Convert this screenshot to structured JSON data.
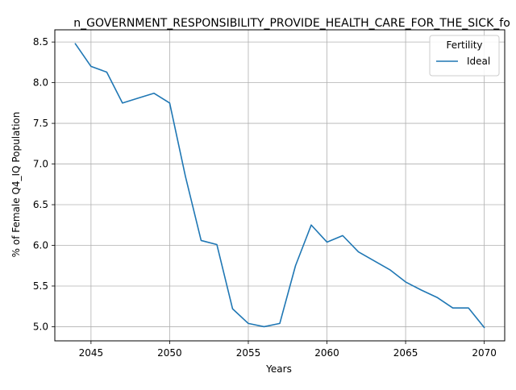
{
  "chart_data": {
    "type": "line",
    "title": "n_GOVERNMENT_RESPONSIBILITY_PROVIDE_HEALTH_CARE_FOR_THE_SICK_fo",
    "xlabel": "Years",
    "ylabel": "% of Female Q4_IQ Population",
    "xlim": [
      2042.7,
      2071.3
    ],
    "ylim": [
      4.826,
      8.65
    ],
    "xticks": [
      2045,
      2050,
      2055,
      2060,
      2065,
      2070
    ],
    "yticks": [
      5.0,
      5.5,
      6.0,
      6.5,
      7.0,
      7.5,
      8.0,
      8.5
    ],
    "xtick_labels": [
      "2045",
      "2050",
      "2055",
      "2060",
      "2065",
      "2070"
    ],
    "ytick_labels": [
      "5.0",
      "5.5",
      "6.0",
      "6.5",
      "7.0",
      "7.5",
      "8.0",
      "8.5"
    ],
    "grid": true,
    "legend": {
      "title": "Fertility",
      "placement": "top-right"
    },
    "x": [
      2044,
      2045,
      2046,
      2047,
      2048,
      2049,
      2050,
      2051,
      2052,
      2053,
      2054,
      2055,
      2056,
      2057,
      2058,
      2059,
      2060,
      2061,
      2062,
      2063,
      2064,
      2065,
      2066,
      2067,
      2068,
      2069,
      2070
    ],
    "series": [
      {
        "name": "Ideal",
        "color": "#1f77b4",
        "values": [
          8.48,
          8.2,
          8.13,
          7.75,
          7.81,
          7.87,
          7.75,
          6.85,
          6.06,
          6.01,
          5.22,
          5.04,
          5.0,
          5.04,
          5.75,
          6.25,
          6.04,
          6.12,
          5.92,
          5.81,
          5.7,
          5.55,
          5.45,
          5.36,
          5.23,
          5.23,
          4.99
        ]
      }
    ]
  }
}
